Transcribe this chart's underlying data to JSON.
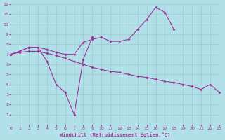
{
  "background_color": "#b2e0e8",
  "grid_color": "#a0c8d0",
  "line_color": "#993399",
  "xlabel": "Windchill (Refroidissement éolien,°C)",
  "xlim": [
    0,
    23
  ],
  "ylim": [
    0,
    12
  ],
  "curve1_x": [
    0,
    1,
    2,
    3,
    4,
    5,
    6,
    7,
    8,
    9
  ],
  "curve1_y": [
    7.0,
    7.3,
    7.7,
    7.7,
    6.3,
    4.0,
    3.2,
    1.0,
    6.5,
    8.7
  ],
  "curve2_x": [
    0,
    1,
    2,
    3,
    4,
    5,
    6,
    7,
    8,
    9,
    10,
    11,
    12,
    13,
    14,
    15,
    16,
    17,
    18
  ],
  "curve2_y": [
    7.0,
    7.3,
    7.7,
    7.7,
    7.5,
    7.2,
    7.0,
    7.0,
    8.2,
    8.5,
    8.7,
    8.3,
    8.3,
    8.5,
    9.5,
    10.5,
    11.7,
    11.2,
    9.5
  ],
  "curve3_x": [
    0,
    1,
    2,
    3,
    4,
    5,
    6,
    7,
    8,
    9,
    10,
    11,
    12,
    13,
    14,
    15,
    16,
    17,
    18,
    19,
    20,
    21,
    22,
    23
  ],
  "curve3_y": [
    7.0,
    7.2,
    7.3,
    7.3,
    7.1,
    6.9,
    6.6,
    6.3,
    6.0,
    5.7,
    5.5,
    5.3,
    5.2,
    5.0,
    4.8,
    4.7,
    4.5,
    4.3,
    4.2,
    4.0,
    3.8,
    3.5,
    4.0,
    3.2
  ]
}
